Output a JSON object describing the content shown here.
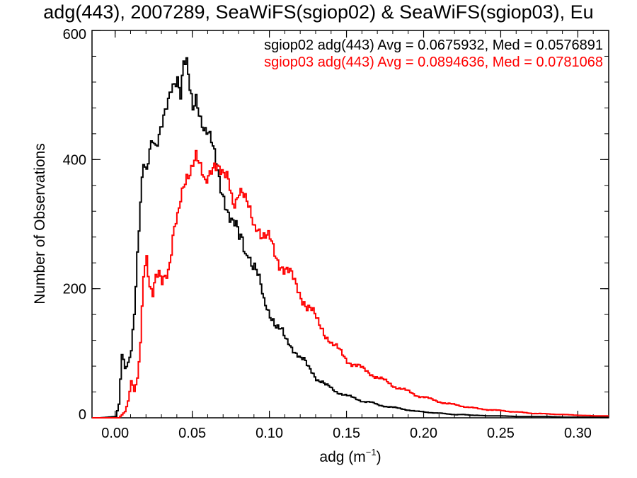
{
  "chart_data": {
    "type": "line",
    "title": "adg(443), 2007289, SeaWiFS(sgiop02) & SeaWiFS(sgiop03), Eu",
    "xlabel": "adg (m",
    "xlabel_sup": "−1",
    "xlabel_end": ")",
    "ylabel": "Number of Observations",
    "xlim": [
      -0.015,
      0.32
    ],
    "ylim": [
      0,
      600
    ],
    "x_ticks": [
      0.0,
      0.05,
      0.1,
      0.15,
      0.2,
      0.25,
      0.3
    ],
    "x_tick_labels": [
      "0.00",
      "0.05",
      "0.10",
      "0.15",
      "0.20",
      "0.25",
      "0.30"
    ],
    "y_ticks": [
      0,
      200,
      400,
      600
    ],
    "y_tick_labels": [
      "0",
      "200",
      "400",
      "600"
    ],
    "grid": false,
    "legend_position": "top-right",
    "legend": [
      {
        "text": "sgiop02 adg(443) Avg = 0.0675932, Med = 0.0576891",
        "color": "#000000"
      },
      {
        "text": "sgiop03 adg(443) Avg = 0.0894636, Med = 0.0781068",
        "color": "#ff0000"
      }
    ],
    "series": [
      {
        "color": "#000000",
        "x": [
          -0.01,
          0,
          0.002,
          0.004,
          0.006,
          0.008,
          0.01,
          0.012,
          0.014,
          0.016,
          0.018,
          0.02,
          0.022,
          0.024,
          0.026,
          0.028,
          0.03,
          0.032,
          0.034,
          0.036,
          0.038,
          0.04,
          0.042,
          0.044,
          0.046,
          0.048,
          0.05,
          0.052,
          0.054,
          0.056,
          0.058,
          0.06,
          0.062,
          0.064,
          0.066,
          0.068,
          0.07,
          0.072,
          0.074,
          0.076,
          0.078,
          0.08,
          0.082,
          0.084,
          0.086,
          0.088,
          0.09,
          0.092,
          0.094,
          0.096,
          0.098,
          0.1,
          0.102,
          0.104,
          0.106,
          0.108,
          0.11,
          0.112,
          0.114,
          0.116,
          0.118,
          0.12,
          0.122,
          0.124,
          0.126,
          0.128,
          0.13,
          0.132,
          0.134,
          0.136,
          0.138,
          0.14,
          0.142,
          0.144,
          0.146,
          0.148,
          0.15,
          0.155,
          0.16,
          0.165,
          0.17,
          0.175,
          0.18,
          0.185,
          0.19,
          0.195,
          0.2,
          0.205,
          0.21,
          0.215,
          0.22,
          0.225,
          0.23,
          0.235,
          0.24,
          0.25,
          0.26,
          0.27,
          0.28,
          0.29,
          0.3,
          0.31,
          0.32
        ],
        "y": [
          0,
          2,
          20,
          95,
          75,
          85,
          110,
          170,
          255,
          330,
          385,
          370,
          415,
          440,
          430,
          445,
          455,
          465,
          480,
          505,
          520,
          535,
          510,
          555,
          545,
          500,
          470,
          495,
          480,
          465,
          450,
          440,
          420,
          400,
          380,
          360,
          350,
          330,
          310,
          295,
          290,
          275,
          280,
          260,
          265,
          240,
          230,
          215,
          200,
          180,
          175,
          165,
          155,
          140,
          135,
          130,
          120,
          118,
          112,
          105,
          98,
          90,
          88,
          80,
          75,
          70,
          62,
          58,
          55,
          50,
          48,
          45,
          42,
          40,
          38,
          36,
          34,
          30,
          26,
          24,
          20,
          18,
          16,
          14,
          12,
          10,
          9,
          8,
          7,
          6,
          5,
          5,
          4,
          4,
          3,
          3,
          2,
          2,
          2,
          1,
          1,
          1,
          1
        ]
      },
      {
        "color": "#ff0000",
        "x": [
          -0.01,
          0,
          0.002,
          0.004,
          0.006,
          0.008,
          0.01,
          0.012,
          0.014,
          0.016,
          0.018,
          0.02,
          0.022,
          0.024,
          0.026,
          0.028,
          0.03,
          0.032,
          0.034,
          0.036,
          0.038,
          0.04,
          0.042,
          0.044,
          0.046,
          0.048,
          0.05,
          0.052,
          0.054,
          0.056,
          0.058,
          0.06,
          0.062,
          0.064,
          0.066,
          0.068,
          0.07,
          0.072,
          0.074,
          0.076,
          0.078,
          0.08,
          0.082,
          0.084,
          0.086,
          0.088,
          0.09,
          0.092,
          0.094,
          0.096,
          0.098,
          0.1,
          0.102,
          0.104,
          0.106,
          0.108,
          0.11,
          0.112,
          0.114,
          0.116,
          0.118,
          0.12,
          0.122,
          0.124,
          0.126,
          0.128,
          0.13,
          0.132,
          0.134,
          0.136,
          0.138,
          0.14,
          0.142,
          0.144,
          0.146,
          0.148,
          0.15,
          0.155,
          0.16,
          0.165,
          0.17,
          0.175,
          0.18,
          0.185,
          0.19,
          0.195,
          0.2,
          0.205,
          0.21,
          0.215,
          0.22,
          0.225,
          0.23,
          0.235,
          0.24,
          0.25,
          0.26,
          0.27,
          0.28,
          0.29,
          0.3,
          0.31,
          0.32
        ],
        "y": [
          0,
          0,
          0,
          5,
          10,
          25,
          55,
          40,
          60,
          120,
          235,
          255,
          200,
          185,
          210,
          220,
          215,
          230,
          235,
          260,
          290,
          300,
          330,
          360,
          380,
          390,
          400,
          405,
          385,
          370,
          360,
          380,
          395,
          400,
          390,
          375,
          365,
          370,
          360,
          340,
          345,
          355,
          345,
          330,
          320,
          310,
          300,
          305,
          290,
          280,
          275,
          270,
          258,
          250,
          245,
          240,
          232,
          225,
          215,
          205,
          198,
          190,
          185,
          175,
          170,
          160,
          150,
          142,
          138,
          130,
          125,
          115,
          110,
          105,
          100,
          95,
          90,
          82,
          75,
          70,
          62,
          56,
          50,
          45,
          40,
          35,
          32,
          28,
          25,
          22,
          20,
          18,
          16,
          14,
          13,
          11,
          9,
          7,
          6,
          5,
          4,
          3,
          3
        ]
      }
    ]
  }
}
